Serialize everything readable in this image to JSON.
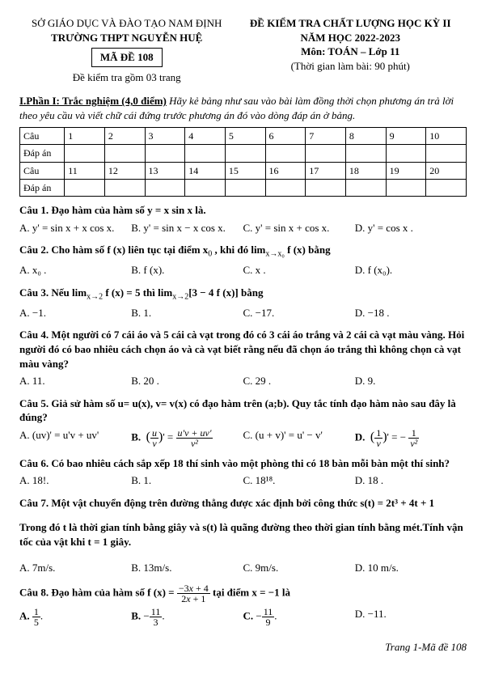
{
  "header": {
    "dept": "SỞ GIÁO DỤC VÀ ĐÀO TẠO NAM ĐỊNH",
    "exam_title": "ĐỀ KIỂM TRA CHẤT LƯỢNG HỌC KỲ II",
    "school": "TRƯỜNG THPT NGUYỄN HUỆ",
    "year": "NĂM HỌC 2022-2023",
    "code_label": "MÃ ĐỀ 108",
    "subject": "Môn: TOÁN – Lớp 11",
    "pages": "Đề kiểm tra gồm 03 trang",
    "time": "(Thời gian làm bài: 90 phút)"
  },
  "part1": {
    "title": "I.Phần I: Trắc nghiệm (4,0 điểm)",
    "instr": "Hãy kẻ bảng như sau vào bài làm đồng thời chọn phương án trả lời theo yêu cầu và viết chữ cái đứng trước phương án đó vào dòng đáp án ở bảng."
  },
  "table": {
    "row_label1": "Câu",
    "row_label2": "Đáp án",
    "nums1": [
      "1",
      "2",
      "3",
      "4",
      "5",
      "6",
      "7",
      "8",
      "9",
      "10"
    ],
    "nums2": [
      "11",
      "12",
      "13",
      "14",
      "15",
      "16",
      "17",
      "18",
      "19",
      "20"
    ]
  },
  "q1": {
    "stem": "Câu 1. Đạo hàm của hàm số  y = x sin x  là.",
    "A": "A.  y' = sin x + x cos x.",
    "B": "B.  y' = sin x − x cos x.",
    "C": "C.  y' = sin x + cos x.",
    "D": "D.  y' = cos x ."
  },
  "q2": {
    "stem_a": "Câu 2. Cho hàm số  f (x)  liên tục tại điểm  x",
    "stem_b": " , khi đó  lim",
    "stem_c": " f (x) bằng",
    "A": "A.  x₀ .",
    "B": "B.  f (x).",
    "C": "C.  x .",
    "D": "D.  f (x₀)."
  },
  "q3": {
    "stem_a": "Câu 3. Nếu  lim",
    "stem_b": " f (x) = 5  thì  lim",
    "stem_c": "[3 − 4 f (x)]  bằng",
    "A": "A.  −1.",
    "B": "B.  1.",
    "C": "C.  −17.",
    "D": "D.  −18 ."
  },
  "q4": {
    "stem": "Câu 4. Một người có 7 cái áo và 5 cái cà vạt trong đó có 3 cái áo trắng và 2 cái cà vạt màu vàng. Hỏi người đó có bao nhiêu cách chọn áo và cà vạt  biết rằng nếu đã chọn áo trắng thì không chọn cà vạt màu vàng?",
    "A": "A.  11.",
    "B": "B.  20 .",
    "C": "C.  29 .",
    "D": "D.  9."
  },
  "q5": {
    "stem": "Câu 5. Giả sử hàm số u= u(x), v= v(x) có đạo hàm trên (a;b). Quy tắc tính đạo hàm nào sau đây là đúng?",
    "A": "A.  (uv)' = u'v + uv'",
    "C": "C.  (u + v)' = u' − v'"
  },
  "q6": {
    "stem": "Câu 6. Có bao nhiêu cách sắp xếp 18 thí sinh vào một phòng thi có 18 bàn mỗi bàn một thí sinh?",
    "A": "A.  18!.",
    "B": "B.  1.",
    "C": "C.  18¹⁸.",
    "D": "D.  18 ."
  },
  "q7": {
    "stem1": "Câu 7. Một vật chuyển động trên đường thẳng được xác định bởi công thức  s(t) = 2t³ + 4t + 1",
    "stem2": "Trong đó t là thời gian tính bằng giây và s(t) là quãng đường theo thời gian tính bằng mét.Tính vận tốc của vật khi t = 1 giây.",
    "A": "A.  7m/s.",
    "B": "B.  13m/s.",
    "C": "C.  9m/s.",
    "D": "D.  10 m/s."
  },
  "q8": {
    "stem_a": "Câu 8. Đạo hàm của hàm số  f (x) = ",
    "stem_b": "  tại điểm  x = −1 là",
    "D": "D.  −11."
  },
  "footer": "Trang 1-Mã đề 108"
}
